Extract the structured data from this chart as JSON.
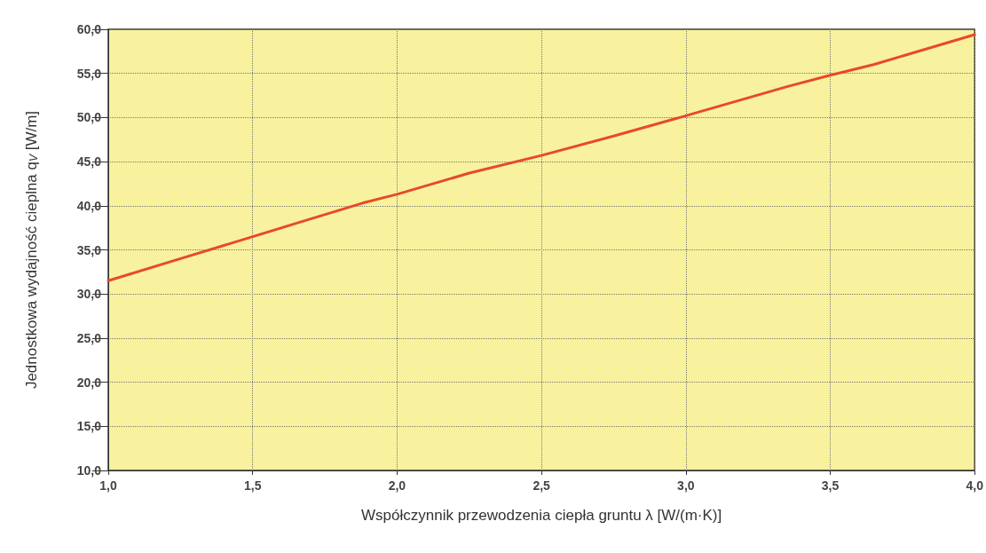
{
  "chart_data": {
    "type": "line",
    "xlabel": "Współczynnik przewodzenia ciepła gruntu λ [W/(m·K)]",
    "ylabel": "Jednostkowa wydajność cieplna q$_{V}$ [W/m]",
    "x": [
      1.0,
      1.25,
      1.5,
      1.65,
      1.88,
      2.0,
      2.25,
      2.5,
      2.75,
      3.0,
      3.35,
      3.5,
      3.65,
      4.0
    ],
    "series": [
      {
        "color": "#e8492b",
        "values": [
          31.5,
          34.0,
          36.5,
          38.0,
          40.3,
          41.3,
          43.7,
          45.7,
          47.9,
          50.2,
          53.5,
          54.8,
          56.0,
          59.4
        ]
      }
    ],
    "xlim": [
      1.0,
      4.0
    ],
    "ylim": [
      10.0,
      60.0
    ],
    "xticks": [
      {
        "value": 1.0,
        "label": "1,0"
      },
      {
        "value": 1.5,
        "label": "1,5"
      },
      {
        "value": 2.0,
        "label": "2,0"
      },
      {
        "value": 2.5,
        "label": "2,5"
      },
      {
        "value": 3.0,
        "label": "3,0"
      },
      {
        "value": 3.5,
        "label": "3,5"
      },
      {
        "value": 4.0,
        "label": "4,0"
      }
    ],
    "yticks": [
      {
        "value": 10,
        "label": "10,0"
      },
      {
        "value": 15,
        "label": "15,0"
      },
      {
        "value": 20,
        "label": "20,0"
      },
      {
        "value": 25,
        "label": "25,0"
      },
      {
        "value": 30,
        "label": "30,0"
      },
      {
        "value": 35,
        "label": "35,0"
      },
      {
        "value": 40,
        "label": "40,0"
      },
      {
        "value": 45,
        "label": "45,0"
      },
      {
        "value": 50,
        "label": "50,0"
      },
      {
        "value": 55,
        "label": "55,0"
      },
      {
        "value": 60,
        "label": "60,0"
      }
    ],
    "grid": true,
    "marker": "none",
    "line_style": "solid"
  }
}
